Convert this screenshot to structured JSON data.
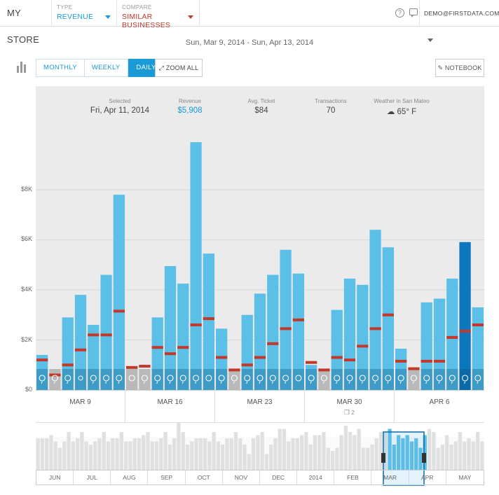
{
  "topbar": {
    "store_label": "MY STORE",
    "type_caption": "TYPE",
    "type_value": "REVENUE",
    "compare_caption": "COMPARE",
    "compare_value": "SIMILAR BUSINESSES",
    "help_label": "?",
    "user_email": "DEMO@FIRSTDATA.COM"
  },
  "date_range": "Sun, Mar 9, 2014 - Sun, Apr 13, 2014",
  "toolbar": {
    "tabs": [
      "MONTHLY",
      "WEEKLY",
      "DAILY"
    ],
    "active_tab": "DAILY",
    "zoom_all_label": "ZOOM ALL",
    "notebook_label": "NOTEBOOK"
  },
  "stats": {
    "selected_caption": "Selected",
    "selected_value": "Fri, Apr 11, 2014",
    "revenue_caption": "Revenue",
    "revenue_value": "$5,908",
    "avg_ticket_caption": "Avg. Ticket",
    "avg_ticket_value": "$84",
    "transactions_caption": "Transactions",
    "transactions_value": "70",
    "weather_caption": "Weather in San Mateo",
    "weather_value": "65° F"
  },
  "colors": {
    "bar": "#5cbfe7",
    "bar_selected": "#0a77bf",
    "bar_closed": "#c4c4c4",
    "compare_marker": "#c0392b",
    "weather_strip": "#3e9bc6",
    "accent": "#1a9ad6",
    "panel_bg": "#ebebeb"
  },
  "chart_data": {
    "type": "bar",
    "y_ticks": [
      "$0",
      "$2K",
      "$4K",
      "$6K",
      "$8K"
    ],
    "ylim": [
      0,
      10000
    ],
    "grid": true,
    "week_labels": [
      "MAR 9",
      "MAR 16",
      "MAR 23",
      "MAR 30",
      "APR 6"
    ],
    "week_notes": [
      "",
      "",
      "",
      "❐ 2",
      ""
    ],
    "series": [
      {
        "name": "Revenue",
        "values": [
          1400,
          0,
          2900,
          3800,
          2600,
          4600,
          7800,
          150,
          0,
          2900,
          4950,
          4250,
          9900,
          5450,
          2450,
          0,
          3000,
          3850,
          4600,
          5600,
          4650,
          1000,
          0,
          3200,
          4450,
          4200,
          6400,
          5700,
          1650,
          0,
          3500,
          3650,
          4450,
          5908,
          3300
        ]
      },
      {
        "name": "Similar Businesses",
        "values": [
          1200,
          600,
          1000,
          1600,
          2200,
          2200,
          3150,
          900,
          950,
          1700,
          1450,
          1700,
          2600,
          2850,
          1300,
          800,
          1000,
          1300,
          1850,
          2450,
          2800,
          1100,
          800,
          1300,
          1200,
          1750,
          2450,
          3000,
          1150,
          850,
          1150,
          1150,
          2100,
          2350,
          2600
        ]
      }
    ],
    "closed_days": [
      1,
      7,
      8,
      15,
      22,
      29
    ],
    "selected_index": 33,
    "weather": [
      "rain",
      "rain",
      "rain",
      "sun",
      "rain",
      "rain",
      "rain",
      "cloud",
      "rain",
      "rain",
      "rain",
      "rain",
      "rain",
      "cloud",
      "rain",
      "rain",
      "rain",
      "rain",
      "rain",
      "rain",
      "cloud",
      "rain",
      "rain",
      "rain",
      "rain",
      "rain",
      "rain",
      "rain",
      "rain",
      "rain",
      "rain",
      "rain",
      "rain",
      "rain",
      "rain"
    ]
  },
  "overview": {
    "months": [
      "JUN",
      "JUL",
      "AUG",
      "SEP",
      "OCT",
      "NOV",
      "DEC",
      "2014",
      "FEB",
      "MAR",
      "APR",
      "MAY"
    ],
    "values": [
      5,
      5,
      5,
      5.5,
      4.5,
      3.5,
      4.5,
      6,
      4.5,
      5,
      6,
      4.5,
      4,
      4.5,
      5,
      6,
      4.5,
      5,
      5,
      6,
      4.5,
      4.5,
      5,
      5,
      5.5,
      6,
      4.5,
      4.5,
      5,
      6,
      4,
      5,
      7.5,
      6,
      4,
      4.5,
      5,
      5,
      5,
      4.5,
      6,
      4.5,
      4,
      5,
      5,
      6,
      5,
      4,
      2.5,
      5,
      5.5,
      6,
      2.5,
      4,
      5,
      6.5,
      6.5,
      4.5,
      5,
      5,
      5.5,
      6,
      4,
      5.5,
      5.5,
      6,
      3.5,
      3,
      3.5,
      5.5,
      7,
      6,
      5.5,
      6.5,
      3.5,
      3.5,
      4,
      5,
      6,
      6,
      6.5,
      4,
      5.5,
      5,
      5.5,
      4.5,
      5,
      3.5,
      5.5,
      6.5,
      6,
      3.5,
      4,
      5.5,
      4,
      4.5,
      6,
      4.5,
      5,
      4.5,
      6,
      4.5
    ],
    "selected_range_label": "MAR"
  }
}
